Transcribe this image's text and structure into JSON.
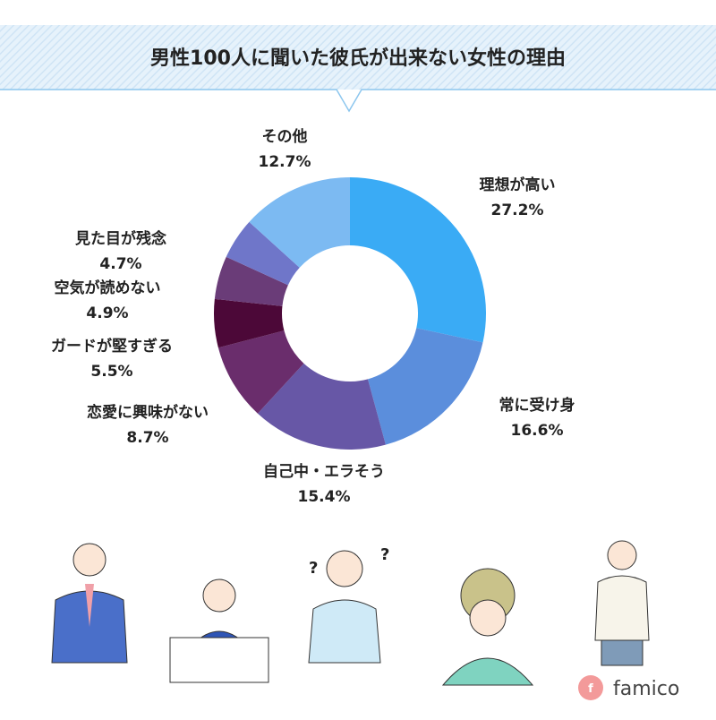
{
  "chart_data": {
    "type": "donut",
    "title": "男性100人に聞いた彼氏が出来ない女性の理由",
    "categories": [
      "理想が高い",
      "常に受け身",
      "自己中・エラそう",
      "恋愛に興味がない",
      "ガードが堅すぎる",
      "空気が読めない",
      "見た目が残念",
      "その他"
    ],
    "values": [
      27.2,
      16.6,
      15.4,
      8.7,
      5.5,
      4.9,
      4.7,
      12.7
    ],
    "value_labels": [
      "27.2%",
      "16.6%",
      "15.4%",
      "8.7%",
      "5.5%",
      "4.9%",
      "4.7%",
      "12.7%"
    ],
    "colors": [
      "#3aabf5",
      "#5b8edc",
      "#6757a6",
      "#6a2d6c",
      "#4c0838",
      "#6a3c78",
      "#6f76c9",
      "#7cbaf2"
    ]
  },
  "logo": "famico"
}
